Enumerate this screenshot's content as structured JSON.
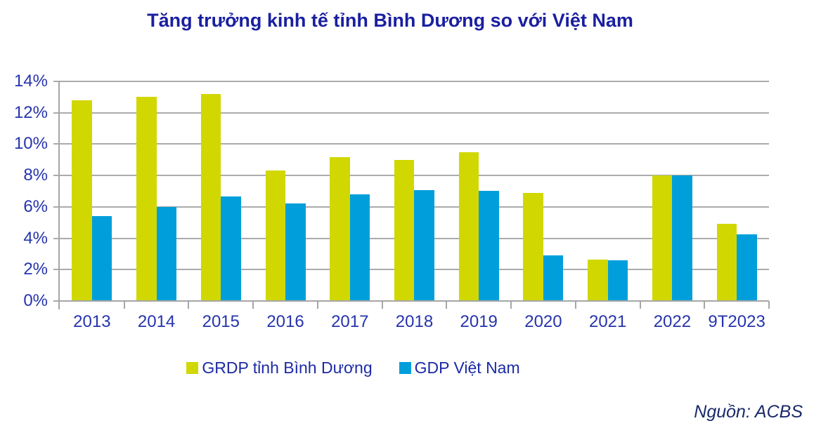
{
  "title": "Tăng trưởng kinh tế tỉnh Bình Dương so với Việt Nam",
  "source": "Nguồn: ACBS",
  "colors": {
    "title_text": "#1A1FA0",
    "axis_label_text": "#2634AC",
    "legend_text": "#1C2BA4",
    "source_text": "#1A2A6B",
    "gridline": "#ABABAB",
    "axis_line": "#A6A6A6",
    "series_binh_duong": "#D1D700",
    "series_vietnam": "#009FDB"
  },
  "chart_data": {
    "type": "bar",
    "title": "Tăng trưởng kinh tế tỉnh Bình Dương so với Việt Nam",
    "categories": [
      "2013",
      "2014",
      "2015",
      "2016",
      "2017",
      "2018",
      "2019",
      "2020",
      "2021",
      "2022",
      "9T2023"
    ],
    "series": [
      {
        "key": "grdp-binh-duong",
        "name": "GRDP tỉnh Bình Dương",
        "color": "#D1D700",
        "values": [
          12.8,
          13.0,
          13.2,
          8.3,
          9.15,
          9.0,
          9.5,
          6.91,
          2.62,
          8.01,
          4.9
        ]
      },
      {
        "key": "gdp-viet-nam",
        "name": "GDP Việt Nam",
        "color": "#009FDB",
        "values": [
          5.42,
          5.98,
          6.68,
          6.21,
          6.81,
          7.08,
          7.02,
          2.91,
          2.58,
          8.02,
          4.24
        ]
      }
    ],
    "xlabel": "",
    "ylabel": "",
    "ylim": [
      0,
      14
    ],
    "ytick_step": 2,
    "ytick_labels": [
      "0%",
      "2%",
      "4%",
      "6%",
      "8%",
      "10%",
      "12%",
      "14%"
    ],
    "grid": true,
    "legend_position": "bottom"
  },
  "legend": {
    "items": [
      {
        "label": "GRDP tỉnh Bình Dương",
        "color": "#D1D700"
      },
      {
        "label": "GDP Việt Nam",
        "color": "#009FDB"
      }
    ]
  }
}
